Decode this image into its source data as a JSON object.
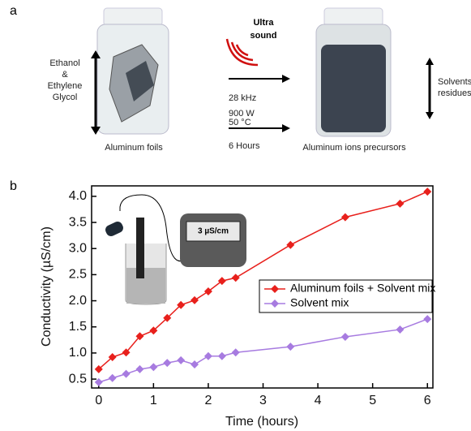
{
  "panel_a": {
    "label": "a",
    "left_label": [
      "Ethanol",
      "&",
      "Ethylene",
      "Glycol"
    ],
    "sound_label": [
      "Ultra",
      "sound"
    ],
    "conditions": [
      "28 kHz",
      "900 W",
      "50 °C",
      "6 Hours"
    ],
    "left_caption": "Aluminum foils",
    "right_caption": "Aluminum ions precursors",
    "right_label": [
      "Solvents",
      "residues"
    ]
  },
  "chart_data": {
    "type": "line",
    "panel_label": "b",
    "x_label": "Time (hours)",
    "y_label": "Conductivity (µS/cm)",
    "inset_label": "3 µS/cm",
    "x": [
      0,
      0.25,
      0.5,
      0.75,
      1,
      1.25,
      1.5,
      1.75,
      2,
      2.25,
      2.5,
      3.5,
      4.5,
      5.5,
      6
    ],
    "series": [
      {
        "name": "Aluminum foils + Solvent mix",
        "color": "#e8201c",
        "values": [
          0.69,
          0.92,
          1.01,
          1.32,
          1.43,
          1.67,
          1.92,
          2.01,
          2.18,
          2.38,
          2.44,
          3.07,
          3.6,
          3.86,
          4.09
        ]
      },
      {
        "name": "Solvent mix",
        "color": "#a77be0",
        "values": [
          0.44,
          0.52,
          0.6,
          0.69,
          0.73,
          0.81,
          0.86,
          0.78,
          0.94,
          0.94,
          1.01,
          1.12,
          1.31,
          1.45,
          1.65
        ]
      }
    ],
    "xlim": [
      -0.13,
      6.1
    ],
    "ylim": [
      0.33,
      4.2
    ],
    "xticks": [
      0,
      1,
      2,
      3,
      4,
      5,
      6
    ],
    "yticks": [
      0.5,
      {
        "value": 1,
        "label": "1.0"
      },
      1.5,
      {
        "value": 2,
        "label": "2.0"
      },
      2.5,
      {
        "value": 3,
        "label": "3.0"
      },
      3.5,
      {
        "value": 4,
        "label": "4.0"
      }
    ],
    "grid": false,
    "legend": "right"
  }
}
